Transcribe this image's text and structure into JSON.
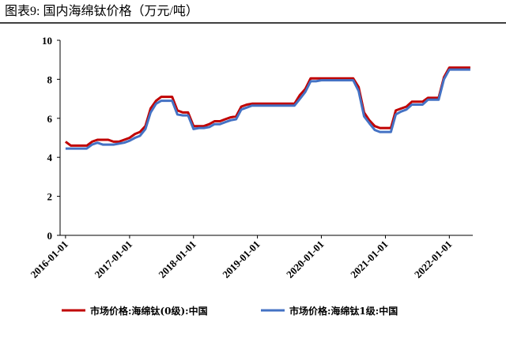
{
  "chart_data": {
    "type": "line",
    "title": "图表9:  国内海绵钛价格（万元/吨）",
    "x": [
      "2016-01-01",
      "2016-02-01",
      "2016-03-01",
      "2016-04-01",
      "2016-05-01",
      "2016-06-01",
      "2016-07-01",
      "2016-08-01",
      "2016-09-01",
      "2016-10-01",
      "2016-11-01",
      "2016-12-01",
      "2017-01-01",
      "2017-02-01",
      "2017-03-01",
      "2017-04-01",
      "2017-05-01",
      "2017-06-01",
      "2017-07-01",
      "2017-08-01",
      "2017-09-01",
      "2017-10-01",
      "2017-11-01",
      "2017-12-01",
      "2018-01-01",
      "2018-02-01",
      "2018-03-01",
      "2018-04-01",
      "2018-05-01",
      "2018-06-01",
      "2018-07-01",
      "2018-08-01",
      "2018-09-01",
      "2018-10-01",
      "2018-11-01",
      "2018-12-01",
      "2019-01-01",
      "2019-02-01",
      "2019-03-01",
      "2019-04-01",
      "2019-05-01",
      "2019-06-01",
      "2019-07-01",
      "2019-08-01",
      "2019-09-01",
      "2019-10-01",
      "2019-11-01",
      "2019-12-01",
      "2020-01-01",
      "2020-02-01",
      "2020-03-01",
      "2020-04-01",
      "2020-05-01",
      "2020-06-01",
      "2020-07-01",
      "2020-08-01",
      "2020-09-01",
      "2020-10-01",
      "2020-11-01",
      "2020-12-01",
      "2021-01-01",
      "2021-02-01",
      "2021-03-01",
      "2021-04-01",
      "2021-05-01",
      "2021-06-01",
      "2021-07-01",
      "2021-08-01",
      "2021-09-01",
      "2021-10-01",
      "2021-11-01",
      "2021-12-01",
      "2022-01-01",
      "2022-02-01",
      "2022-03-01",
      "2022-04-01",
      "2022-05-01"
    ],
    "series": [
      {
        "name": "市场价格:海绵钛(0级):中国",
        "color": "#c00000",
        "values": [
          4.8,
          4.6,
          4.6,
          4.6,
          4.6,
          4.8,
          4.9,
          4.9,
          4.9,
          4.8,
          4.8,
          4.9,
          5.0,
          5.2,
          5.3,
          5.6,
          6.5,
          6.9,
          7.1,
          7.1,
          7.1,
          6.4,
          6.3,
          6.3,
          5.6,
          5.6,
          5.6,
          5.7,
          5.85,
          5.85,
          5.95,
          6.05,
          6.1,
          6.6,
          6.7,
          6.75,
          6.75,
          6.75,
          6.75,
          6.75,
          6.75,
          6.75,
          6.75,
          6.75,
          7.2,
          7.5,
          8.05,
          8.05,
          8.05,
          8.05,
          8.05,
          8.05,
          8.05,
          8.05,
          8.05,
          7.6,
          6.3,
          5.9,
          5.6,
          5.5,
          5.5,
          5.5,
          6.4,
          6.5,
          6.6,
          6.85,
          6.85,
          6.85,
          7.05,
          7.05,
          7.05,
          8.1,
          8.6,
          8.6,
          8.6,
          8.6,
          8.6
        ]
      },
      {
        "name": "市场价格:海绵钛1级:中国",
        "color": "#4472c4",
        "values": [
          4.45,
          4.45,
          4.45,
          4.45,
          4.45,
          4.65,
          4.75,
          4.65,
          4.65,
          4.65,
          4.7,
          4.75,
          4.85,
          5.0,
          5.1,
          5.45,
          6.3,
          6.75,
          6.9,
          6.9,
          6.9,
          6.2,
          6.15,
          6.15,
          5.45,
          5.5,
          5.5,
          5.55,
          5.7,
          5.7,
          5.8,
          5.9,
          5.95,
          6.45,
          6.55,
          6.65,
          6.65,
          6.65,
          6.65,
          6.65,
          6.65,
          6.65,
          6.65,
          6.65,
          7.0,
          7.35,
          7.9,
          7.9,
          7.95,
          7.95,
          7.95,
          7.95,
          7.95,
          7.95,
          7.95,
          7.4,
          6.1,
          5.75,
          5.4,
          5.3,
          5.3,
          5.3,
          6.2,
          6.35,
          6.45,
          6.7,
          6.7,
          6.7,
          6.95,
          6.95,
          6.95,
          8.0,
          8.5,
          8.5,
          8.5,
          8.5,
          8.5
        ]
      }
    ],
    "xlim": [
      "2015-12-01",
      "2022-05-15"
    ],
    "xticks": [
      "2016-01-01",
      "2017-01-01",
      "2018-01-01",
      "2019-01-01",
      "2020-01-01",
      "2021-01-01",
      "2022-01-01"
    ],
    "ylim": [
      0,
      10
    ],
    "yticks": [
      0,
      2,
      4,
      6,
      8,
      10
    ]
  }
}
